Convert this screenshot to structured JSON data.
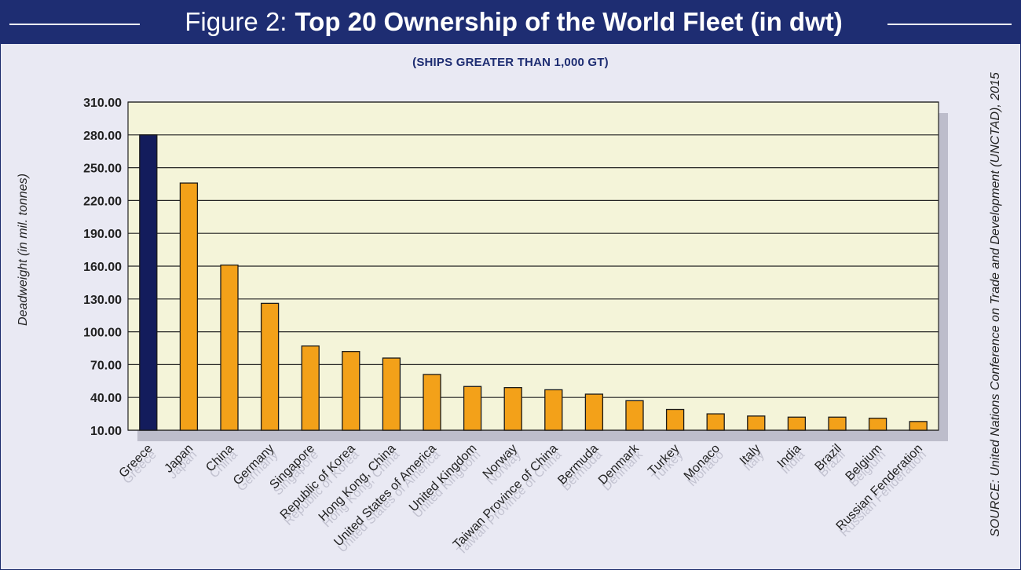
{
  "header": {
    "title_prefix": "Figure 2:",
    "title_main": "Top 20 Ownership of the World Fleet (in dwt)"
  },
  "source": "SOURCE: United Nations Conference on Trade and Development (UNCTAD), 2015",
  "chart_data": {
    "type": "bar",
    "title": "Top 20 Ownership of the World Fleet (in dwt)",
    "subtitle": "(SHIPS GREATER THAN 1,000 GT)",
    "xlabel": "",
    "ylabel": "Deadweight (in mil. tonnes)",
    "ylim": [
      10,
      310
    ],
    "yticks": [
      "10.00",
      "40.00",
      "70.00",
      "100.00",
      "130.00",
      "160.00",
      "190.00",
      "220.00",
      "250.00",
      "280.00",
      "310.00"
    ],
    "grid": true,
    "categories": [
      "Greece",
      "Japan",
      "China",
      "Germany",
      "Singapore",
      "Republic of Korea",
      "Hong Kong, China",
      "United States of America",
      "United Kingdom",
      "Norway",
      "Taiwan Province of China",
      "Bermuda",
      "Denmark",
      "Turkey",
      "Monaco",
      "Italy",
      "India",
      "Brazil",
      "Belgium",
      "Russian Fenderation"
    ],
    "values": [
      280,
      236,
      161,
      126,
      87,
      82,
      76,
      61,
      50,
      49,
      47,
      43,
      37,
      29,
      25,
      23,
      22,
      22,
      21,
      18
    ],
    "colors": {
      "highlight": "#131c5c",
      "bar": "#f3a119",
      "plot_bg": "#f4f4d9",
      "grid": "#222222"
    }
  }
}
